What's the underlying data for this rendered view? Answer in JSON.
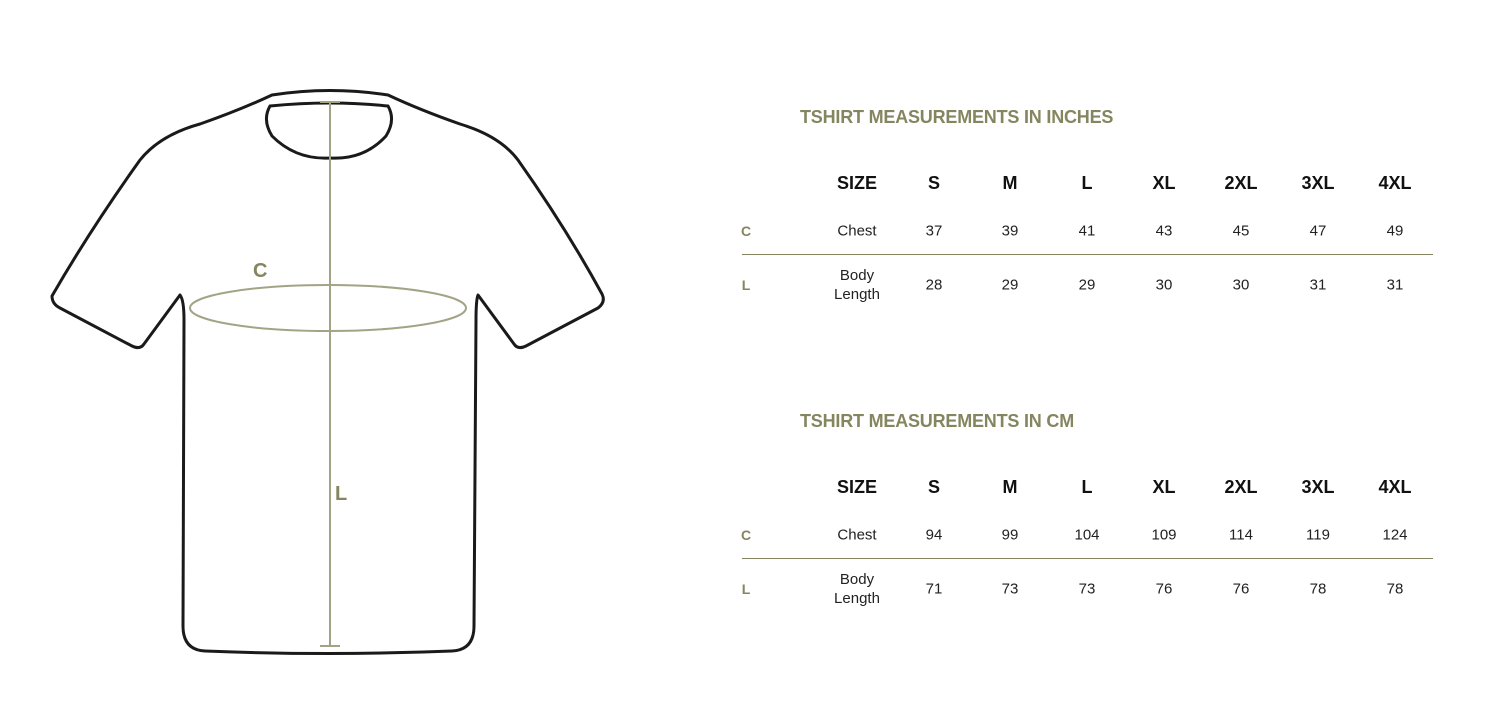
{
  "diagram": {
    "chest_label": "C",
    "length_label": "L",
    "accent_color": "#858560",
    "outline_color": "#1a1a1a"
  },
  "tables": [
    {
      "title": "TSHIRT MEASUREMENTS IN INCHES",
      "header": [
        "SIZE",
        "S",
        "M",
        "L",
        "XL",
        "2XL",
        "3XL",
        "4XL"
      ],
      "rows": [
        {
          "code": "C",
          "name": "Chest",
          "values": [
            "37",
            "39",
            "41",
            "43",
            "45",
            "47",
            "49"
          ]
        },
        {
          "code": "L",
          "name": "Body Length",
          "values": [
            "28",
            "29",
            "29",
            "30",
            "30",
            "31",
            "31"
          ]
        }
      ]
    },
    {
      "title": "TSHIRT MEASUREMENTS IN CM",
      "header": [
        "SIZE",
        "S",
        "M",
        "L",
        "XL",
        "2XL",
        "3XL",
        "4XL"
      ],
      "rows": [
        {
          "code": "C",
          "name": "Chest",
          "values": [
            "94",
            "99",
            "104",
            "109",
            "114",
            "119",
            "124"
          ]
        },
        {
          "code": "L",
          "name": "Body Length",
          "values": [
            "71",
            "73",
            "73",
            "76",
            "76",
            "78",
            "78"
          ]
        }
      ]
    }
  ]
}
